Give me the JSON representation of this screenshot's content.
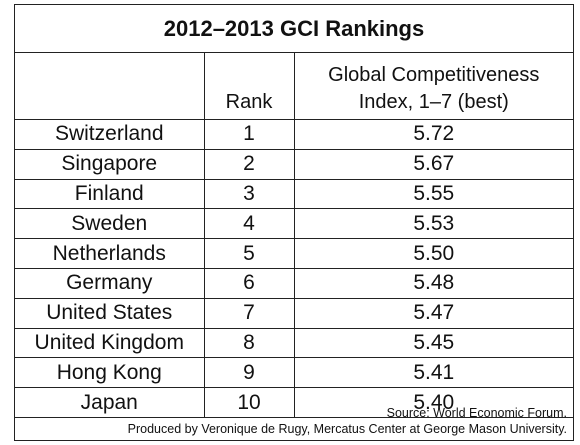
{
  "chart_data": {
    "type": "table",
    "title": "2012–2013 GCI Rankings",
    "columns": [
      "",
      "Rank",
      "Global Competitiveness Index, 1–7 (best)"
    ],
    "header_lines": [
      "Global Competitiveness",
      "Index, 1–7 (best)"
    ],
    "rows": [
      {
        "country": "Switzerland",
        "rank": "1",
        "index": "5.72"
      },
      {
        "country": "Singapore",
        "rank": "2",
        "index": "5.67"
      },
      {
        "country": "Finland",
        "rank": "3",
        "index": "5.55"
      },
      {
        "country": "Sweden",
        "rank": "4",
        "index": "5.53"
      },
      {
        "country": "Netherlands",
        "rank": "5",
        "index": "5.50"
      },
      {
        "country": "Germany",
        "rank": "6",
        "index": "5.48"
      },
      {
        "country": "United States",
        "rank": "7",
        "index": "5.47"
      },
      {
        "country": "United Kingdom",
        "rank": "8",
        "index": "5.45"
      },
      {
        "country": "Hong Kong",
        "rank": "9",
        "index": "5.41"
      },
      {
        "country": "Japan",
        "rank": "10",
        "index": "5.40"
      }
    ],
    "source": "Source: World Economic Forum.",
    "credit": "Produced by Veronique de Rugy, Mercatus Center at George Mason University."
  }
}
